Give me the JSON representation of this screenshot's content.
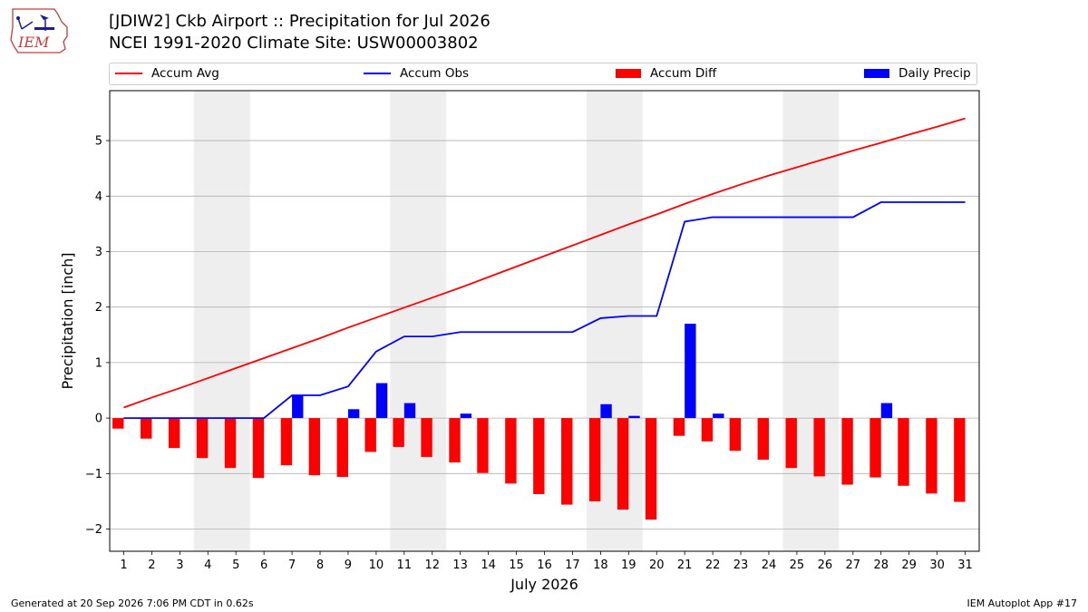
{
  "header": {
    "title": "[JDIW2] Ckb Airport :: Precipitation for Jul 2026",
    "subtitle": "NCEI 1991-2020 Climate Site: USW00003802",
    "logo_text": "IEM"
  },
  "footer": {
    "generated": "Generated at 20 Sep 2026 7:06 PM CDT in 0.62s",
    "app": "IEM Autoplot App #17"
  },
  "colors": {
    "accum_avg": "#ff0000",
    "accum_obs": "#0000ff",
    "accum_diff": "#ff0000",
    "daily_precip": "#0000ff",
    "weekend_shade": "#eeeeee",
    "grid": "#b0b0b0"
  },
  "chart_data": {
    "type": "bar",
    "xlabel": "July 2026",
    "ylabel": "Precipitation [inch]",
    "ylim": [
      -2.4,
      5.9
    ],
    "yticks": [
      -2,
      -1,
      0,
      1,
      2,
      3,
      4,
      5
    ],
    "ytick_labels": [
      "−2",
      "−1",
      "0",
      "1",
      "2",
      "3",
      "4",
      "5"
    ],
    "grid": "horizontal",
    "legend_placement": "top",
    "x": [
      1,
      2,
      3,
      4,
      5,
      6,
      7,
      8,
      9,
      10,
      11,
      12,
      13,
      14,
      15,
      16,
      17,
      18,
      19,
      20,
      21,
      22,
      23,
      24,
      25,
      26,
      27,
      28,
      29,
      30,
      31
    ],
    "x_labels": [
      "1",
      "2",
      "3",
      "4",
      "5",
      "6",
      "7",
      "8",
      "9",
      "10",
      "11",
      "12",
      "13",
      "14",
      "15",
      "16",
      "17",
      "18",
      "19",
      "20",
      "21",
      "22",
      "23",
      "24",
      "25",
      "26",
      "27",
      "28",
      "29",
      "30",
      "31"
    ],
    "weekend_days": [
      [
        4,
        5
      ],
      [
        11,
        12
      ],
      [
        18,
        19
      ],
      [
        25,
        26
      ]
    ],
    "series": [
      {
        "name": "Accum Avg",
        "kind": "line",
        "values": [
          0.19,
          0.37,
          0.54,
          0.72,
          0.9,
          1.08,
          1.26,
          1.44,
          1.63,
          1.81,
          1.99,
          2.17,
          2.35,
          2.54,
          2.73,
          2.92,
          3.11,
          3.3,
          3.49,
          3.67,
          3.86,
          4.04,
          4.21,
          4.37,
          4.52,
          4.67,
          4.82,
          4.96,
          5.11,
          5.25,
          5.4
        ]
      },
      {
        "name": "Accum Obs",
        "kind": "line",
        "values": [
          0.0,
          0.0,
          0.0,
          0.0,
          0.0,
          0.0,
          0.41,
          0.41,
          0.57,
          1.2,
          1.47,
          1.47,
          1.55,
          1.55,
          1.55,
          1.55,
          1.55,
          1.8,
          1.84,
          1.84,
          3.54,
          3.62,
          3.62,
          3.62,
          3.62,
          3.62,
          3.62,
          3.89,
          3.89,
          3.89,
          3.89
        ]
      },
      {
        "name": "Accum Diff",
        "kind": "bar",
        "values": [
          -0.19,
          -0.37,
          -0.54,
          -0.72,
          -0.9,
          -1.08,
          -0.85,
          -1.03,
          -1.06,
          -0.61,
          -0.52,
          -0.7,
          -0.8,
          -0.99,
          -1.18,
          -1.37,
          -1.56,
          -1.5,
          -1.65,
          -1.83,
          -0.32,
          -0.42,
          -0.59,
          -0.75,
          -0.9,
          -1.05,
          -1.2,
          -1.07,
          -1.22,
          -1.36,
          -1.51
        ]
      },
      {
        "name": "Daily Precip",
        "kind": "bar",
        "values": [
          0,
          0,
          0,
          0,
          0,
          0,
          0.41,
          0,
          0.16,
          0.63,
          0.27,
          0,
          0.08,
          0,
          0,
          0,
          0,
          0.25,
          0.04,
          0,
          1.7,
          0.08,
          0,
          0,
          0,
          0,
          0,
          0.27,
          0,
          0,
          0
        ]
      }
    ]
  }
}
